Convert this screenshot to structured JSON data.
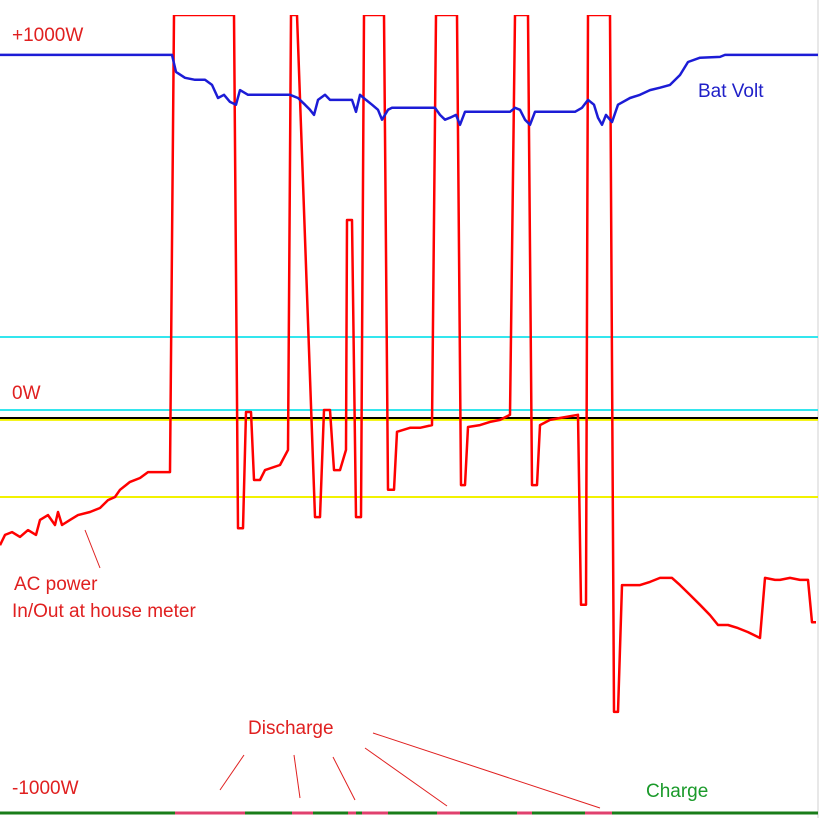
{
  "chart_data": {
    "type": "line",
    "xlim": [
      0,
      818
    ],
    "ylim": [
      -1000,
      1020
    ],
    "yticks": [
      {
        "value": 1000,
        "label": "+1000W"
      },
      {
        "value": 0,
        "label": "0W"
      },
      {
        "value": -1000,
        "label": "-1000W"
      }
    ],
    "tick_color": "#e02020",
    "hlines": [
      {
        "value": 205,
        "color": "#33e6ee"
      },
      {
        "value": 20,
        "color": "#33e6ee"
      },
      {
        "value": -5,
        "color": "#f2f200"
      },
      {
        "value": -200,
        "color": "#f2f200"
      },
      {
        "value": 0,
        "color": "#000000"
      }
    ],
    "series": [
      {
        "name": "AC power",
        "color": "#ff0000",
        "x": [
          0,
          5,
          12,
          20,
          28,
          36,
          40,
          48,
          55,
          58,
          62,
          70,
          78,
          90,
          100,
          108,
          115,
          120,
          130,
          140,
          148,
          155,
          170,
          174,
          234,
          238,
          243,
          246,
          251,
          254,
          260,
          265,
          280,
          288,
          291,
          297,
          315,
          320,
          324,
          330,
          334,
          340,
          346,
          347,
          352,
          356,
          361,
          364,
          384,
          388,
          394,
          397,
          410,
          420,
          432,
          436,
          457,
          461,
          465,
          468,
          480,
          490,
          500,
          510,
          515,
          528,
          532,
          537,
          540,
          550,
          560,
          578,
          581,
          586,
          588,
          610,
          614,
          618,
          622,
          640,
          650,
          660,
          672,
          680,
          690,
          700,
          710,
          718,
          728,
          738,
          748,
          760,
          765,
          775,
          780,
          790,
          800,
          808,
          812,
          816
        ],
        "values": [
          -322,
          -296,
          -289,
          -301,
          -284,
          -296,
          -258,
          -246,
          -271,
          -238,
          -271,
          -258,
          -246,
          -238,
          -228,
          -208,
          -200,
          -182,
          -162,
          -152,
          -137,
          -137,
          -137,
          1020,
          1020,
          -279,
          -279,
          15,
          15,
          -157,
          -157,
          -132,
          -119,
          -81,
          1020,
          1020,
          -251,
          -251,
          20,
          20,
          -132,
          -132,
          -81,
          501,
          501,
          -251,
          -251,
          1020,
          1020,
          -182,
          -182,
          -35,
          -25,
          -25,
          -18,
          1020,
          1020,
          -170,
          -170,
          -23,
          -18,
          -10,
          -5,
          8,
          1020,
          1020,
          -170,
          -170,
          -18,
          -5,
          0,
          8,
          -473,
          -473,
          1020,
          1020,
          -744,
          -744,
          -423,
          -423,
          -415,
          -405,
          -405,
          -423,
          -448,
          -473,
          -499,
          -524,
          -524,
          -532,
          -542,
          -557,
          -405,
          -410,
          -410,
          -405,
          -410,
          -410,
          -517,
          -517
        ]
      },
      {
        "name": "Bat Volt",
        "color": "#1c1cd6",
        "x": [
          0,
          172,
          176,
          185,
          195,
          205,
          212,
          218,
          224,
          230,
          236,
          240,
          248,
          290,
          298,
          305,
          310,
          314,
          318,
          325,
          330,
          352,
          356,
          360,
          366,
          372,
          378,
          382,
          388,
          392,
          420,
          435,
          440,
          445,
          450,
          456,
          460,
          465,
          480,
          510,
          515,
          520,
          525,
          530,
          535,
          560,
          575,
          582,
          588,
          594,
          598,
          602,
          606,
          612,
          618,
          630,
          640,
          650,
          660,
          670,
          680,
          688,
          700,
          720,
          725,
          818
        ],
        "values": [
          919,
          919,
          876,
          861,
          856,
          856,
          843,
          810,
          818,
          800,
          793,
          830,
          818,
          818,
          810,
          793,
          780,
          767,
          805,
          818,
          805,
          805,
          775,
          818,
          805,
          793,
          780,
          755,
          780,
          785,
          785,
          785,
          767,
          755,
          760,
          767,
          742,
          775,
          775,
          775,
          785,
          780,
          755,
          742,
          775,
          775,
          775,
          785,
          805,
          793,
          760,
          742,
          767,
          749,
          793,
          810,
          818,
          830,
          836,
          843,
          868,
          901,
          912,
          914,
          919,
          919
        ]
      }
    ],
    "status": {
      "charge_color": "#1a7d1a",
      "discharge_color": "#e0406e",
      "discharge": [
        [
          175,
          245
        ],
        [
          292,
          313
        ],
        [
          348,
          356
        ],
        [
          362,
          388
        ],
        [
          437,
          460
        ],
        [
          517,
          532
        ],
        [
          585,
          612
        ]
      ]
    },
    "annotations": {
      "bat_volt": "Bat Volt",
      "ac_power_1": "AC power",
      "ac_power_2": "In/Out at house meter",
      "discharge": "Discharge",
      "charge": "Charge"
    }
  }
}
